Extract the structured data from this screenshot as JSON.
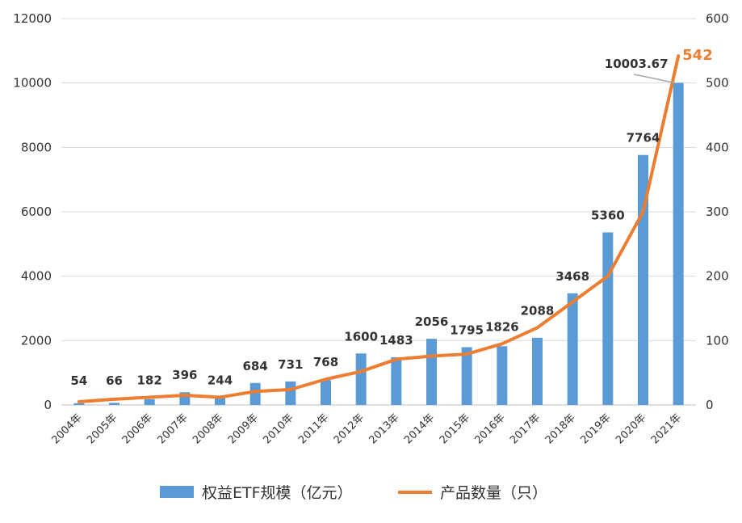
{
  "chart_data": {
    "type": "bar",
    "categories": [
      "2004年",
      "2005年",
      "2006年",
      "2007年",
      "2008年",
      "2009年",
      "2010年",
      "2011年",
      "2012年",
      "2013年",
      "2014年",
      "2015年",
      "2016年",
      "2017年",
      "2018年",
      "2019年",
      "2020年",
      "2021年"
    ],
    "series": [
      {
        "name": "权益ETF规模（亿元）",
        "type": "bar",
        "axis": "left",
        "color": "#5B9BD5",
        "values": [
          54,
          66,
          182,
          396,
          244,
          684,
          731,
          768,
          1600,
          1483,
          2056,
          1795,
          1826,
          2088,
          3468,
          5360,
          7764,
          10003.67
        ],
        "labels": [
          "54",
          "66",
          "182",
          "396",
          "244",
          "684",
          "731",
          "768",
          "1600",
          "1483",
          "2056",
          "1795",
          "1826",
          "2088",
          "3468",
          "5360",
          "7764",
          "10003.67"
        ]
      },
      {
        "name": "产品数量（只）",
        "type": "line",
        "axis": "right",
        "color": "#ED7D31",
        "values": [
          5,
          9,
          12,
          15,
          12,
          21,
          24,
          40,
          52,
          71,
          76,
          79,
          95,
          120,
          160,
          200,
          300,
          542
        ],
        "last_label": "542"
      }
    ],
    "left_axis": {
      "ylim": [
        0,
        12000
      ],
      "ticks": [
        "0",
        "2000",
        "4000",
        "6000",
        "8000",
        "10000",
        "12000"
      ]
    },
    "right_axis": {
      "ylim": [
        0,
        600
      ],
      "ticks": [
        "0",
        "100",
        "200",
        "300",
        "400",
        "500",
        "600"
      ]
    },
    "grid": true,
    "legend_position": "bottom"
  }
}
